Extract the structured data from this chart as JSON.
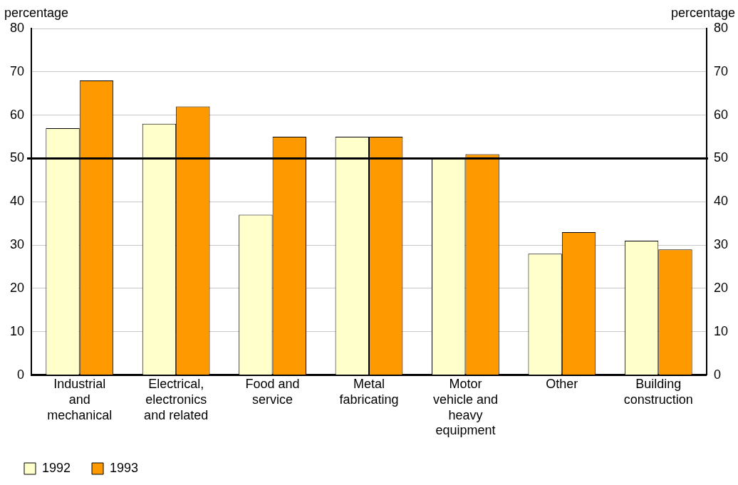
{
  "chart_data": {
    "type": "bar",
    "categories": [
      "Industrial and mechanical",
      "Electrical, electronics and related",
      "Food and service",
      "Metal fabricating",
      "Motor vehicle and heavy equipment",
      "Other",
      "Building construction"
    ],
    "series": [
      {
        "name": "1992",
        "color": "#ffffcc",
        "values": [
          57,
          58,
          37,
          55,
          50,
          28,
          31
        ]
      },
      {
        "name": "1993",
        "color": "#ff9900",
        "values": [
          68,
          62,
          55,
          55,
          51,
          33,
          29
        ]
      }
    ],
    "ylabel": "percentage",
    "y2label": "percentage",
    "ylim": [
      0,
      80
    ],
    "yticks": [
      0,
      10,
      20,
      30,
      40,
      50,
      60,
      70,
      80
    ],
    "y2lim": [
      0,
      80
    ],
    "y2ticks": [
      0,
      10,
      20,
      30,
      40,
      50,
      60,
      70,
      80
    ],
    "ref_lines": [
      {
        "axis": "y",
        "value": 50,
        "color": "#000000"
      }
    ],
    "grid": "y",
    "legend": "bottom left"
  }
}
